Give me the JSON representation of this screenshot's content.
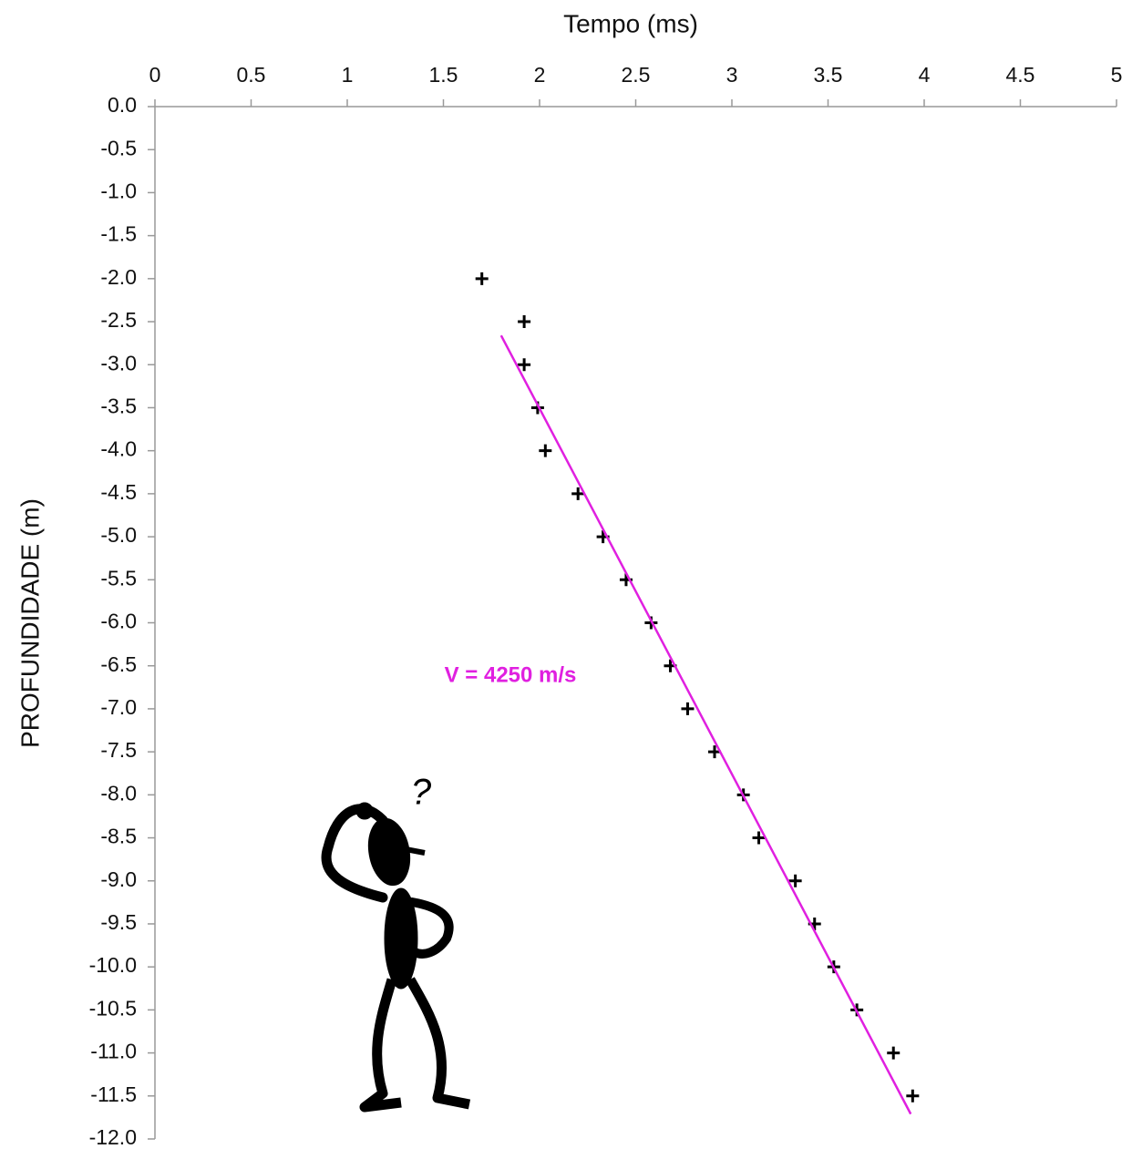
{
  "chart_data": {
    "type": "scatter",
    "title": "Tempo (ms)",
    "y_label": "PROFUNDIDADE (m)",
    "xlim": [
      0,
      5
    ],
    "xticks": [
      0,
      0.5,
      1,
      1.5,
      2,
      2.5,
      3,
      3.5,
      4,
      4.5,
      5
    ],
    "ylim": [
      -12,
      0
    ],
    "yticks": [
      {
        "value": 0,
        "label": "0.0"
      },
      -0.5,
      {
        "value": -1,
        "label": "-1.0"
      },
      -1.5,
      {
        "value": -2,
        "label": "-2.0"
      },
      -2.5,
      {
        "value": -3,
        "label": "-3.0"
      },
      -3.5,
      {
        "value": -4,
        "label": "-4.0"
      },
      -4.5,
      {
        "value": -5,
        "label": "-5.0"
      },
      -5.5,
      {
        "value": -6,
        "label": "-6.0"
      },
      -6.5,
      {
        "value": -7,
        "label": "-7.0"
      },
      -7.5,
      {
        "value": -8,
        "label": "-8.0"
      },
      -8.5,
      {
        "value": -9,
        "label": "-9.0"
      },
      -9.5,
      {
        "value": -10,
        "label": "-10.0"
      },
      -10.5,
      {
        "value": -11,
        "label": "-11.0"
      },
      -11.5,
      {
        "value": -12,
        "label": "-12.0"
      }
    ],
    "series": [
      {
        "kind": "scatter",
        "color": "#000000",
        "x": [
          1.7,
          1.92,
          1.92,
          1.99,
          2.03,
          2.2,
          2.33,
          2.45,
          2.58,
          2.68,
          2.77,
          2.91,
          3.06,
          3.14,
          3.33,
          3.43,
          3.53,
          3.65,
          3.84,
          3.94
        ],
        "values": [
          -2,
          -2.5,
          -3,
          -3.5,
          -4,
          -4.5,
          -5,
          -5.5,
          -6,
          -6.5,
          -7,
          -7.5,
          -8,
          -8.5,
          -9,
          -9.5,
          -10,
          -10.5,
          -11,
          -11.5
        ]
      },
      {
        "kind": "line",
        "color": "#e020e0",
        "x": [
          1.8,
          3.93
        ],
        "values": [
          -2.66,
          -11.71
        ]
      }
    ],
    "annotations": [
      {
        "text": "V = 4250 m/s",
        "color": "#e020e0"
      },
      {
        "text": "?",
        "color": "#000000"
      }
    ]
  }
}
